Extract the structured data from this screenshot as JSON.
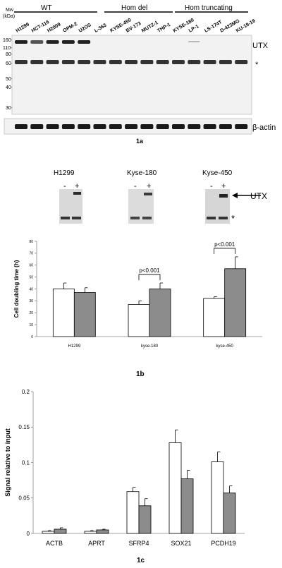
{
  "panel_1a": {
    "mw_label": "Mw",
    "kda_label": "(kDa)",
    "groups": [
      "WT",
      "Hom del",
      "Hom truncating"
    ],
    "lanes": [
      "H1299",
      "HCT-116",
      "H2009",
      "OPM-2",
      "U2OS",
      "L-363",
      "KYSE-450",
      "BV-173",
      "MUTZ-1",
      "THP-1",
      "KYSE-180",
      "LP-1",
      "LS-174T",
      "D-423MG",
      "KU-19-19"
    ],
    "markers": [
      "160-",
      "110-",
      "80-",
      "60-",
      "50-",
      "40-",
      "30-"
    ],
    "band_utx": "UTX",
    "band_star": "*",
    "band_actin": "β-actin",
    "caption": "1a"
  },
  "panel_1b_blots": {
    "lines": [
      {
        "name": "H1299",
        "minus": "-",
        "plus": "+"
      },
      {
        "name": "Kyse-180",
        "minus": "-",
        "plus": "+"
      },
      {
        "name": "Kyse-450",
        "minus": "-",
        "plus": "+"
      }
    ],
    "utx_label": "UTX",
    "star": "*"
  },
  "panel_1b_chart": {
    "caption": "1b",
    "pvalues": [
      "p<0.001",
      "p<0.001"
    ]
  },
  "panel_1c": {
    "caption": "1c"
  },
  "chart_data": [
    {
      "type": "bar",
      "ylabel": "Cell doubling time (h)",
      "xlabel": "",
      "categories": [
        "H1299",
        "kyse-180",
        "kyse-450"
      ],
      "series": [
        {
          "values": [
            40,
            27,
            32
          ],
          "errors": [
            5,
            3,
            1.5
          ],
          "color": "#ffffff"
        },
        {
          "values": [
            37,
            40,
            57
          ],
          "errors": [
            4,
            5,
            10
          ],
          "color": "#8c8c8c"
        }
      ],
      "ylim": [
        0,
        80
      ],
      "yticks": [
        "0",
        "10",
        "20",
        "30",
        "40",
        "50",
        "60",
        "70",
        "80"
      ],
      "annotations": [
        {
          "text": "p<0.001",
          "category": "kyse-180"
        },
        {
          "text": "p<0.001",
          "category": "kyse-450"
        }
      ]
    },
    {
      "type": "bar",
      "ylabel": "Signal relative to input",
      "xlabel": "",
      "categories": [
        "ACTB",
        "APRT",
        "SFRP4",
        "SOX21",
        "PCDH19"
      ],
      "series": [
        {
          "values": [
            0.003,
            0.003,
            0.059,
            0.128,
            0.101
          ],
          "errors": [
            0.001,
            0.001,
            0.006,
            0.018,
            0.014
          ],
          "color": "#ffffff"
        },
        {
          "values": [
            0.006,
            0.005,
            0.039,
            0.077,
            0.057
          ],
          "errors": [
            0.002,
            0.001,
            0.01,
            0.012,
            0.01
          ],
          "color": "#8c8c8c"
        }
      ],
      "ylim": [
        0,
        0.2
      ],
      "yticks": [
        "0",
        "0.05",
        "0.1",
        "0.15",
        "0.2"
      ]
    }
  ]
}
